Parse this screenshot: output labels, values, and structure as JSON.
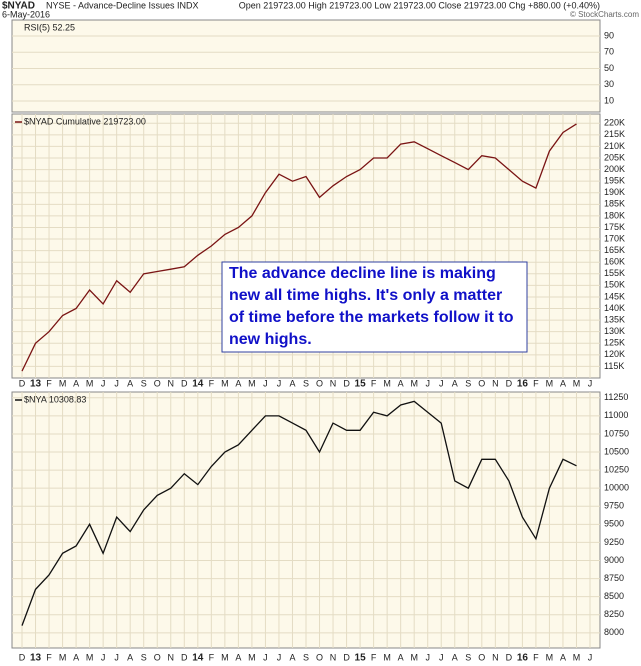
{
  "header": {
    "symbol": "$NYAD",
    "description": "NYSE - Advance-Decline Issues INDX",
    "date": "6-May-2016",
    "quote": "Open 219723.00  High 219723.00  Low 219723.00  Close 219723.00  Chg +880.00 (+0.40%)",
    "credit": "© StockCharts.com"
  },
  "chart_data": [
    {
      "type": "indicator",
      "label": "RSI(5) 52.25",
      "ylim": [
        -3.5,
        109.7
      ],
      "yticks": [
        10,
        30,
        50,
        70,
        90
      ]
    },
    {
      "type": "line",
      "annotation": [
        "The advance decline line is making",
        "new all time highs. It's only a matter",
        "of time before the markets follow it to",
        "new highs."
      ],
      "categories": [
        "D",
        "13",
        "F",
        "M",
        "A",
        "M",
        "J",
        "J",
        "A",
        "S",
        "O",
        "N",
        "D",
        "14",
        "F",
        "M",
        "A",
        "M",
        "J",
        "J",
        "A",
        "S",
        "O",
        "N",
        "D",
        "15",
        "F",
        "M",
        "A",
        "M",
        "J",
        "J",
        "A",
        "S",
        "O",
        "N",
        "D",
        "16",
        "F",
        "M",
        "A",
        "M",
        "J"
      ],
      "series": [
        {
          "name": "$NYAD Cumulative 219723.00",
          "color": "#7a1414",
          "values": [
            113000,
            125000,
            130000,
            137000,
            140000,
            148000,
            142000,
            152000,
            147000,
            155000,
            156000,
            157000,
            158000,
            163000,
            167000,
            172000,
            175000,
            180000,
            190000,
            198000,
            195000,
            197000,
            188000,
            193000,
            197000,
            200000,
            205000,
            205000,
            211000,
            212000,
            209000,
            206000,
            203000,
            200000,
            206000,
            205000,
            200000,
            195000,
            192000,
            208000,
            216000,
            219723,
            null
          ]
        }
      ],
      "ylim": [
        110000,
        224000
      ],
      "yticks": [
        {
          "value": 115000,
          "label": "115K"
        },
        {
          "value": 120000,
          "label": "120K"
        },
        {
          "value": 125000,
          "label": "125K"
        },
        {
          "value": 130000,
          "label": "130K"
        },
        {
          "value": 135000,
          "label": "135K"
        },
        {
          "value": 140000,
          "label": "140K"
        },
        {
          "value": 145000,
          "label": "145K"
        },
        {
          "value": 150000,
          "label": "150K"
        },
        {
          "value": 155000,
          "label": "155K"
        },
        {
          "value": 160000,
          "label": "160K"
        },
        {
          "value": 165000,
          "label": "165K"
        },
        {
          "value": 170000,
          "label": "170K"
        },
        {
          "value": 175000,
          "label": "175K"
        },
        {
          "value": 180000,
          "label": "180K"
        },
        {
          "value": 185000,
          "label": "185K"
        },
        {
          "value": 190000,
          "label": "190K"
        },
        {
          "value": 195000,
          "label": "195K"
        },
        {
          "value": 200000,
          "label": "200K"
        },
        {
          "value": 205000,
          "label": "205K"
        },
        {
          "value": 210000,
          "label": "210K"
        },
        {
          "value": 215000,
          "label": "215K"
        },
        {
          "value": 220000,
          "label": "220K"
        }
      ]
    },
    {
      "type": "line",
      "categories": [
        "D",
        "13",
        "F",
        "M",
        "A",
        "M",
        "J",
        "J",
        "A",
        "S",
        "O",
        "N",
        "D",
        "14",
        "F",
        "M",
        "A",
        "M",
        "J",
        "J",
        "A",
        "S",
        "O",
        "N",
        "D",
        "15",
        "F",
        "M",
        "A",
        "M",
        "J",
        "J",
        "A",
        "S",
        "O",
        "N",
        "D",
        "16",
        "F",
        "M",
        "A",
        "M",
        "J"
      ],
      "series": [
        {
          "name": "$NYA 10308.83",
          "color": "#111111",
          "values": [
            8100,
            8600,
            8800,
            9100,
            9200,
            9500,
            9100,
            9600,
            9400,
            9700,
            9900,
            10000,
            10200,
            10050,
            10300,
            10500,
            10600,
            10800,
            11000,
            11000,
            10900,
            10800,
            10500,
            10900,
            10800,
            10800,
            11050,
            11000,
            11150,
            11200,
            11050,
            10900,
            10100,
            10000,
            10400,
            10400,
            10100,
            9600,
            9300,
            10000,
            10400,
            10308.83,
            null
          ]
        }
      ],
      "ylim": [
        7790,
        11330
      ],
      "yticks": [
        8000,
        8250,
        8500,
        8750,
        9000,
        9250,
        9500,
        9750,
        10000,
        10250,
        10500,
        10750,
        11000,
        11250
      ]
    }
  ]
}
